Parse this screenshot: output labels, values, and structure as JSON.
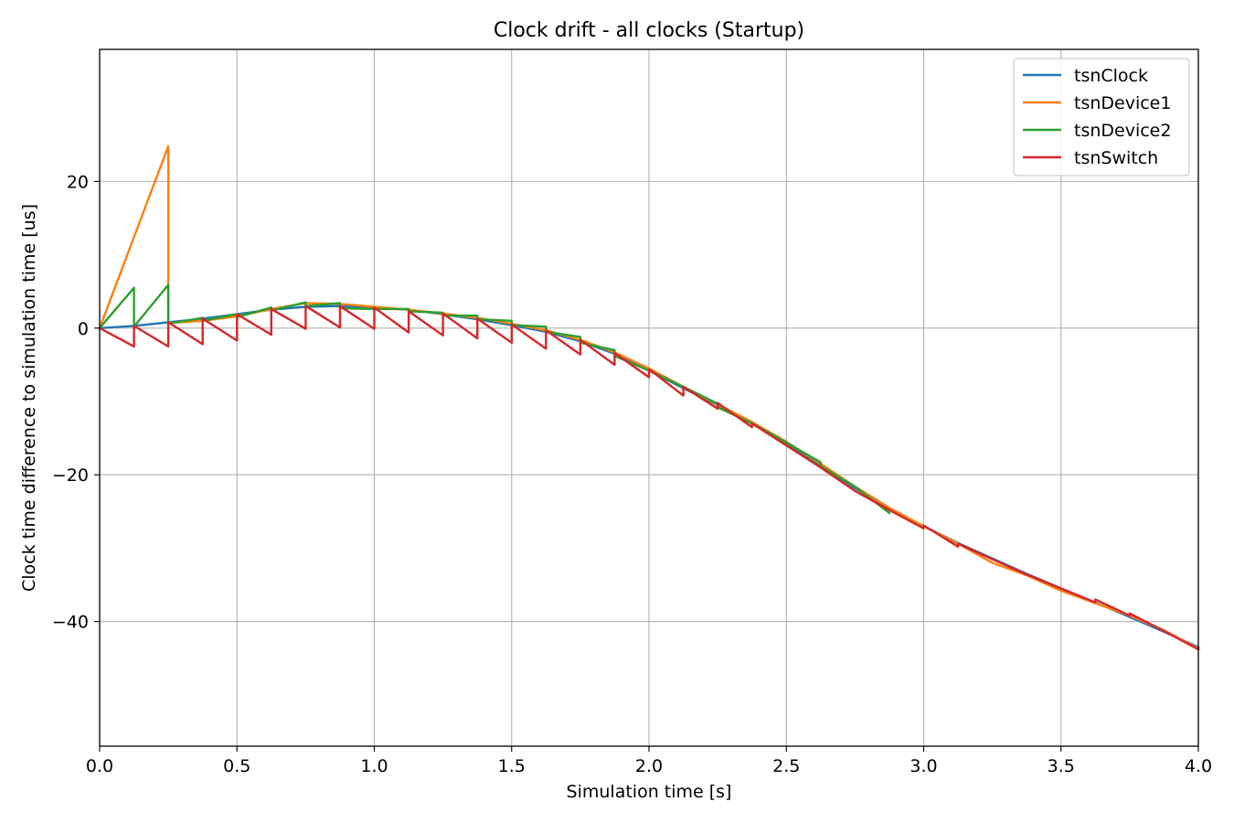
{
  "chart_data": {
    "type": "line",
    "title": "Clock drift - all clocks (Startup)",
    "xlabel": "Simulation time [s]",
    "ylabel": "Clock time difference to simulation time [us]",
    "xlim": [
      0.0,
      4.0
    ],
    "ylim": [
      -57,
      38
    ],
    "xticks": [
      0.0,
      0.5,
      1.0,
      1.5,
      2.0,
      2.5,
      3.0,
      3.5,
      4.0
    ],
    "xtick_labels": [
      "0.0",
      "0.5",
      "1.0",
      "1.5",
      "2.0",
      "2.5",
      "3.0",
      "3.5",
      "4.0"
    ],
    "yticks": [
      -40,
      -20,
      0,
      20
    ],
    "ytick_labels": [
      "−40",
      "−20",
      "0",
      "20"
    ],
    "grid": true,
    "legend_position": "top-right",
    "series": [
      {
        "name": "tsnClock",
        "color": "#1f77b4",
        "x": [
          0,
          0.125,
          0.25,
          0.375,
          0.5,
          0.625,
          0.75,
          0.875,
          1.0,
          1.125,
          1.25,
          1.375,
          1.5,
          1.625,
          1.75,
          1.875,
          2.0,
          2.125,
          2.25,
          2.375,
          2.5,
          2.625,
          2.75,
          2.875,
          3.0,
          3.125,
          3.25,
          3.375,
          3.5,
          3.625,
          3.75,
          3.875,
          4.0
        ],
        "y": [
          0,
          0.3,
          0.8,
          1.3,
          1.9,
          2.5,
          2.9,
          3.0,
          2.8,
          2.5,
          1.9,
          1.2,
          0.4,
          -0.5,
          -1.8,
          -3.5,
          -5.8,
          -8.2,
          -10.5,
          -13.0,
          -15.8,
          -18.8,
          -21.8,
          -24.6,
          -27.0,
          -29.3,
          -31.4,
          -33.5,
          -35.5,
          -37.4,
          -39.4,
          -41.4,
          -43.5
        ]
      },
      {
        "name": "tsnDevice1",
        "color": "#ff7f0e",
        "x": [
          0,
          0.25,
          0.25,
          0.375,
          0.5,
          0.625,
          0.75,
          0.875,
          1.0,
          1.125,
          1.25,
          1.375,
          1.5,
          1.625,
          1.75,
          1.875,
          2.0,
          2.125,
          2.25,
          2.375,
          2.5,
          2.625,
          2.75,
          2.875,
          3.0,
          3.125,
          3.25,
          3.375,
          3.5,
          3.625,
          3.75,
          3.875,
          4.0
        ],
        "y": [
          0,
          24.8,
          0.7,
          1.0,
          1.6,
          2.6,
          3.4,
          3.3,
          2.9,
          2.5,
          2.0,
          1.4,
          0.6,
          -0.3,
          -1.6,
          -3.3,
          -5.5,
          -8.0,
          -10.4,
          -12.8,
          -15.5,
          -18.5,
          -21.6,
          -24.5,
          -27.0,
          -29.4,
          -32.0,
          -33.7,
          -35.8,
          -37.5,
          -39.2,
          -41.2,
          -43.7
        ]
      },
      {
        "name": "tsnDevice2",
        "color": "#2ca02c",
        "x": [
          0,
          0.125,
          0.125,
          0.25,
          0.25,
          0.375,
          0.375,
          0.5,
          0.5,
          0.625,
          0.625,
          0.75,
          0.75,
          0.875,
          0.875,
          1.0,
          1.125,
          1.125,
          1.25,
          1.25,
          1.375,
          1.375,
          1.5,
          1.5,
          1.625,
          1.625,
          1.75,
          1.75,
          1.875,
          1.875,
          2.0,
          2.125,
          2.25,
          2.25,
          2.375,
          2.5,
          2.625,
          2.625,
          2.75,
          2.875,
          2.875
        ],
        "y": [
          0,
          5.5,
          0.2,
          5.9,
          0.6,
          1.4,
          1.0,
          1.9,
          1.5,
          2.8,
          2.4,
          3.5,
          3.0,
          3.4,
          2.7,
          2.6,
          2.6,
          2.3,
          2.1,
          1.7,
          1.7,
          1.2,
          1.0,
          0.4,
          0.2,
          -0.5,
          -1.2,
          -2.0,
          -3.0,
          -3.8,
          -5.8,
          -8.0,
          -10.3,
          -10.8,
          -13.0,
          -15.6,
          -18.3,
          -18.8,
          -21.6,
          -25.2,
          -25.2
        ]
      },
      {
        "name": "tsnSwitch",
        "color": "#d62728",
        "x": [
          0,
          0.125,
          0.125,
          0.25,
          0.25,
          0.375,
          0.375,
          0.5,
          0.5,
          0.625,
          0.625,
          0.75,
          0.75,
          0.875,
          0.875,
          1.0,
          1.0,
          1.125,
          1.125,
          1.25,
          1.25,
          1.375,
          1.375,
          1.5,
          1.5,
          1.625,
          1.625,
          1.75,
          1.75,
          1.875,
          1.875,
          2.0,
          2.0,
          2.125,
          2.125,
          2.25,
          2.25,
          2.375,
          2.375,
          2.5,
          2.625,
          2.75,
          2.875,
          3.0,
          3.0,
          3.125,
          3.125,
          3.25,
          3.375,
          3.5,
          3.625,
          3.625,
          3.75,
          3.75,
          3.875,
          4.0
        ],
        "y": [
          0,
          -2.5,
          0.3,
          -2.5,
          0.8,
          -2.2,
          1.3,
          -1.7,
          1.9,
          -0.9,
          2.6,
          -0.1,
          3.0,
          0.1,
          3.0,
          -0.1,
          2.8,
          -0.6,
          2.3,
          -1.0,
          2.0,
          -1.4,
          1.3,
          -2.0,
          0.5,
          -2.8,
          -0.3,
          -3.6,
          -1.6,
          -5.0,
          -3.4,
          -6.7,
          -5.6,
          -9.2,
          -8.0,
          -11.0,
          -10.2,
          -13.5,
          -13.0,
          -16.0,
          -19.0,
          -22.2,
          -24.8,
          -27.3,
          -26.9,
          -29.8,
          -29.4,
          -31.5,
          -33.6,
          -35.5,
          -37.4,
          -37.0,
          -39.2,
          -38.9,
          -41.3,
          -43.8
        ]
      }
    ]
  }
}
